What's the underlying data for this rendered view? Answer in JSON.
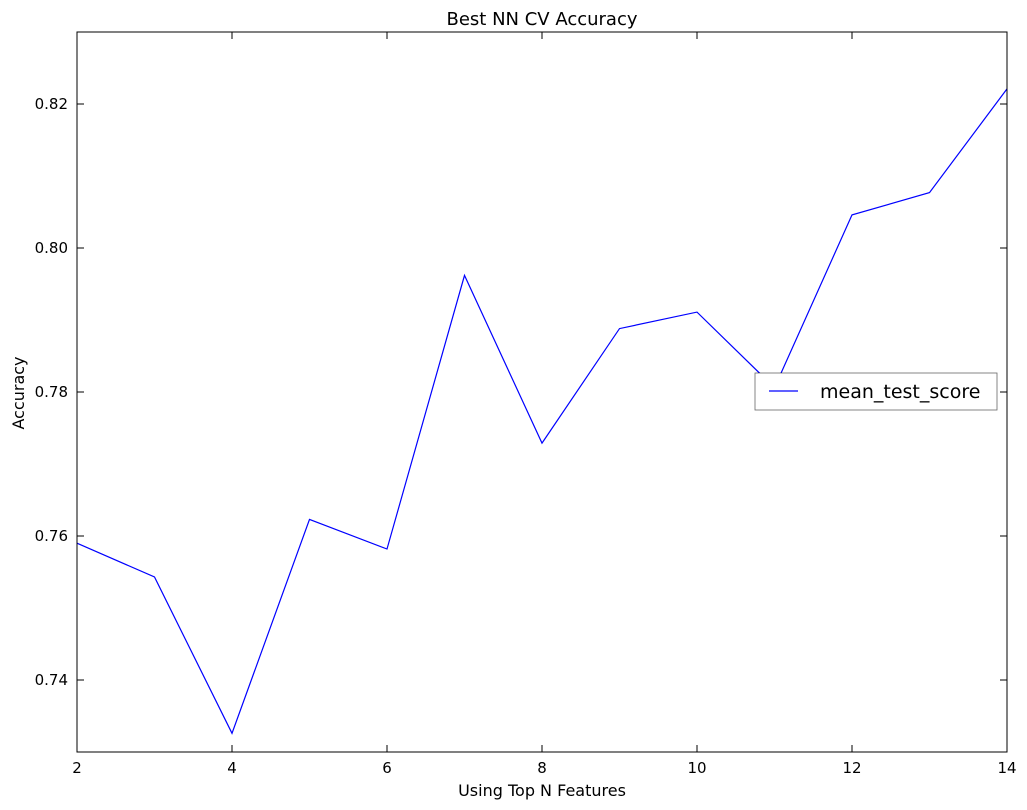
{
  "chart_data": {
    "type": "line",
    "title": "Best NN CV Accuracy",
    "xlabel": "Using Top N Features",
    "ylabel": "Accuracy",
    "xlim": [
      2,
      14
    ],
    "ylim": [
      0.73,
      0.83
    ],
    "xticks": [
      2,
      4,
      6,
      8,
      10,
      12,
      14
    ],
    "yticks": [
      0.74,
      0.76,
      0.78,
      0.8,
      0.82
    ],
    "ytick_labels": [
      "0.74",
      "0.76",
      "0.78",
      "0.80",
      "0.82"
    ],
    "grid": false,
    "legend_position": "center-right",
    "series": [
      {
        "name": "mean_test_score",
        "color": "#0000ff",
        "x": [
          2,
          3,
          4,
          5,
          6,
          7,
          8,
          9,
          10,
          11,
          12,
          13,
          14
        ],
        "y": [
          0.759,
          0.7543,
          0.7326,
          0.7623,
          0.7582,
          0.7962,
          0.7729,
          0.7888,
          0.7911,
          0.7806,
          0.8046,
          0.8077,
          0.8221
        ]
      }
    ]
  }
}
